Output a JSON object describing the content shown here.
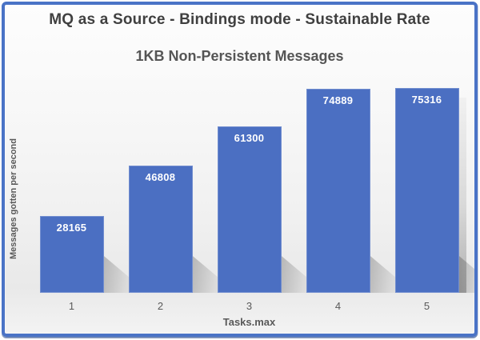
{
  "frame": {
    "border_color": "#4a73c6"
  },
  "chart_data": {
    "type": "bar",
    "title": "MQ as a Source - Bindings mode - Sustainable Rate",
    "subtitle": "1KB Non-Persistent Messages",
    "categories": [
      "1",
      "2",
      "3",
      "4",
      "5"
    ],
    "values": [
      28165,
      46808,
      61300,
      74889,
      75316
    ],
    "xlabel": "Tasks.max",
    "ylabel": "Messages gotten per second",
    "ylim": [
      0,
      80000
    ],
    "grid": false,
    "legend_position": "none",
    "bar_color": "#4b6fc2",
    "data_label_color": "#ffffff",
    "title_color": "#404040",
    "axis_text_color": "#595959"
  }
}
